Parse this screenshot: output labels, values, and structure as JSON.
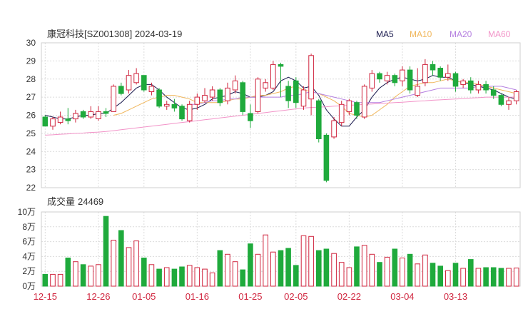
{
  "header": {
    "title": "康冠科技[SZ001308] 2024-03-19"
  },
  "volume_title": {
    "prefix": "成交量",
    "value": "24469"
  },
  "legend": [
    {
      "label": "MA5",
      "color": "#1a1a4e"
    },
    {
      "label": "MA10",
      "color": "#f0b65a"
    },
    {
      "label": "MA20",
      "color": "#b57fe0"
    },
    {
      "label": "MA60",
      "color": "#f293c8"
    }
  ],
  "colors": {
    "up": "#d0253e",
    "down": "#1faa3c"
  },
  "chart_data": [
    {
      "type": "candlestick",
      "title": "康冠科技[SZ001308] 2024-03-19",
      "ylim": [
        22,
        30
      ],
      "yticks": [
        "30",
        "29",
        "28",
        "27",
        "26",
        "25",
        "24",
        "23",
        "22"
      ],
      "xticks": [
        "12-15",
        "12-26",
        "01-05",
        "01-16",
        "01-25",
        "02-05",
        "02-22",
        "03-04",
        "03-13"
      ],
      "xtick_index": [
        0,
        7,
        13,
        20,
        27,
        33,
        40,
        47,
        54
      ],
      "candles": [
        [
          25.9,
          25.4,
          26.0,
          25.4
        ],
        [
          25.4,
          25.8,
          25.9,
          25.2
        ],
        [
          25.6,
          25.9,
          26.2,
          25.5
        ],
        [
          25.8,
          25.7,
          26.4,
          25.5
        ],
        [
          25.8,
          26.1,
          26.3,
          25.6
        ],
        [
          26.2,
          25.9,
          26.3,
          25.8
        ],
        [
          25.9,
          26.2,
          26.5,
          25.8
        ],
        [
          25.8,
          26.2,
          26.5,
          25.7
        ],
        [
          26.2,
          26.1,
          26.4,
          25.9
        ],
        [
          26.2,
          27.6,
          27.7,
          26.2
        ],
        [
          27.6,
          27.2,
          27.8,
          27.1
        ],
        [
          27.4,
          28.2,
          28.5,
          27.2
        ],
        [
          27.8,
          28.3,
          28.6,
          27.7
        ],
        [
          28.2,
          27.4,
          28.2,
          27.3
        ],
        [
          27.3,
          27.6,
          27.8,
          27.1
        ],
        [
          27.4,
          26.5,
          27.5,
          26.4
        ],
        [
          26.5,
          26.6,
          26.8,
          26.3
        ],
        [
          26.6,
          26.4,
          26.9,
          26.2
        ],
        [
          26.5,
          25.8,
          26.6,
          25.7
        ],
        [
          25.7,
          26.6,
          26.8,
          25.6
        ],
        [
          26.6,
          27.0,
          27.2,
          26.3
        ],
        [
          26.8,
          27.1,
          27.5,
          26.7
        ],
        [
          27.0,
          27.4,
          27.6,
          26.8
        ],
        [
          27.4,
          26.7,
          27.5,
          26.5
        ],
        [
          26.8,
          27.5,
          27.8,
          26.6
        ],
        [
          27.4,
          27.9,
          28.2,
          27.2
        ],
        [
          27.8,
          26.2,
          27.9,
          26.0
        ],
        [
          26.1,
          25.7,
          26.6,
          25.3
        ],
        [
          26.2,
          28.0,
          28.1,
          26.1
        ],
        [
          27.5,
          27.8,
          28.0,
          27.3
        ],
        [
          27.5,
          28.8,
          29.0,
          27.4
        ],
        [
          28.8,
          28.7,
          28.9,
          27.0
        ],
        [
          27.6,
          26.8,
          27.9,
          26.4
        ],
        [
          27.9,
          26.7,
          28.1,
          26.4
        ],
        [
          26.5,
          27.4,
          27.6,
          26.3
        ],
        [
          26.9,
          29.3,
          29.4,
          26.0
        ],
        [
          26.8,
          24.7,
          26.9,
          24.5
        ],
        [
          24.9,
          22.4,
          25.0,
          22.3
        ],
        [
          24.8,
          25.7,
          25.9,
          24.7
        ],
        [
          25.6,
          26.6,
          26.8,
          25.4
        ],
        [
          26.2,
          26.8,
          26.9,
          26.0
        ],
        [
          26.7,
          26.0,
          26.8,
          25.8
        ],
        [
          25.9,
          27.6,
          27.7,
          25.8
        ],
        [
          27.5,
          28.3,
          28.5,
          27.3
        ],
        [
          28.3,
          28.0,
          28.4,
          27.8
        ],
        [
          27.9,
          28.2,
          28.4,
          27.7
        ],
        [
          28.2,
          27.8,
          28.3,
          27.6
        ],
        [
          27.9,
          28.5,
          28.7,
          27.6
        ],
        [
          28.5,
          27.4,
          28.7,
          27.2
        ],
        [
          27.1,
          27.6,
          28.6,
          27.0
        ],
        [
          27.8,
          28.8,
          29.1,
          27.6
        ],
        [
          28.8,
          28.5,
          29.0,
          28.2
        ],
        [
          28.6,
          28.1,
          28.7,
          27.9
        ],
        [
          28.1,
          28.3,
          28.8,
          27.9
        ],
        [
          28.3,
          27.6,
          28.4,
          27.3
        ],
        [
          27.7,
          27.9,
          28.0,
          27.5
        ],
        [
          27.9,
          27.4,
          28.1,
          27.2
        ],
        [
          27.4,
          27.7,
          27.9,
          27.2
        ],
        [
          27.7,
          27.4,
          27.9,
          27.2
        ],
        [
          27.4,
          27.1,
          27.6,
          26.9
        ],
        [
          27.1,
          26.6,
          27.2,
          26.5
        ],
        [
          26.6,
          26.8,
          27.0,
          26.3
        ],
        [
          26.8,
          27.3,
          27.4,
          26.6
        ]
      ],
      "series": [
        {
          "name": "MA5",
          "values": [
            26.0,
            25.9,
            25.8,
            25.8,
            25.9,
            26.0,
            26.0,
            26.1,
            26.1,
            26.4,
            26.7,
            27.1,
            27.5,
            27.7,
            27.7,
            27.4,
            27.0,
            26.7,
            26.4,
            26.3,
            26.4,
            26.6,
            26.9,
            27.0,
            27.1,
            27.3,
            27.2,
            27.0,
            27.0,
            27.1,
            27.3,
            27.9,
            28.1,
            27.9,
            27.5,
            27.6,
            27.1,
            26.3,
            25.8,
            25.4,
            25.4,
            25.9,
            26.3,
            27.0,
            27.5,
            27.8,
            28.0,
            28.1,
            28.0,
            27.9,
            28.0,
            28.2,
            28.1,
            28.1,
            27.9,
            27.8,
            27.7,
            27.6,
            27.5,
            27.4,
            27.2,
            27.0,
            26.9
          ]
        },
        {
          "name": "MA10",
          "values": [
            null,
            null,
            null,
            null,
            null,
            null,
            null,
            null,
            null,
            26.0,
            26.1,
            26.3,
            26.5,
            26.7,
            26.9,
            27.0,
            27.1,
            27.1,
            27.0,
            26.9,
            26.7,
            26.7,
            26.7,
            26.7,
            26.8,
            26.9,
            26.9,
            27.0,
            27.1,
            27.1,
            27.2,
            27.3,
            27.5,
            27.6,
            27.4,
            27.3,
            27.2,
            27.0,
            26.8,
            26.5,
            26.1,
            26.0,
            25.9,
            26.0,
            26.3,
            26.6,
            27.0,
            27.3,
            27.6,
            27.7,
            27.8,
            27.8,
            27.9,
            28.0,
            27.9,
            27.8,
            27.8,
            27.7,
            27.6,
            27.5,
            27.4,
            27.3,
            27.2
          ]
        },
        {
          "name": "MA20",
          "values": [
            null,
            null,
            null,
            null,
            null,
            null,
            null,
            null,
            null,
            null,
            null,
            null,
            null,
            null,
            null,
            null,
            null,
            null,
            null,
            26.6,
            26.6,
            26.7,
            26.8,
            26.8,
            26.9,
            26.9,
            27.0,
            27.0,
            27.0,
            27.0,
            27.0,
            27.0,
            27.1,
            27.1,
            27.2,
            27.3,
            27.2,
            27.1,
            27.0,
            26.9,
            26.8,
            26.7,
            26.7,
            26.7,
            26.7,
            26.8,
            26.9,
            27.0,
            27.1,
            27.2,
            27.3,
            27.4,
            27.5,
            27.5,
            27.5,
            27.5,
            27.5,
            27.6,
            27.6,
            27.6,
            27.6,
            27.5,
            27.4
          ]
        },
        {
          "name": "MA60",
          "values": [
            24.9,
            24.92,
            24.95,
            24.97,
            25.0,
            25.02,
            25.05,
            25.07,
            25.1,
            25.15,
            25.2,
            25.25,
            25.3,
            25.35,
            25.4,
            25.45,
            25.5,
            25.55,
            25.6,
            25.65,
            25.7,
            25.75,
            25.8,
            25.85,
            25.9,
            25.95,
            26.0,
            26.05,
            26.1,
            26.15,
            26.2,
            26.25,
            26.3,
            26.35,
            26.4,
            26.43,
            26.45,
            26.47,
            26.5,
            26.52,
            26.55,
            26.57,
            26.6,
            26.62,
            26.65,
            26.67,
            26.7,
            26.72,
            26.75,
            26.78,
            26.8,
            26.83,
            26.85,
            26.88,
            26.9,
            26.92,
            26.95,
            26.97,
            27.0,
            27.0,
            27.0,
            27.0,
            27.0
          ]
        }
      ]
    },
    {
      "type": "bar",
      "title": "成交量 24469",
      "ylim": [
        0,
        100000
      ],
      "yticks": [
        "10万",
        "8万",
        "6万",
        "4万",
        "2万",
        "0万"
      ],
      "values": [
        16000,
        16000,
        16000,
        38000,
        33000,
        29000,
        27000,
        29000,
        94000,
        62000,
        75000,
        52000,
        61000,
        38000,
        29000,
        23000,
        25000,
        23000,
        26000,
        28000,
        25000,
        23000,
        18000,
        48000,
        43000,
        33000,
        22000,
        57000,
        43000,
        69000,
        46000,
        48000,
        51000,
        28000,
        68000,
        67000,
        48000,
        50000,
        44000,
        32000,
        25000,
        53000,
        55000,
        43000,
        32000,
        39000,
        50000,
        38000,
        43000,
        30000,
        42000,
        31000,
        27000,
        21000,
        31000,
        24000,
        36000,
        24000,
        25000,
        25000,
        24000,
        24000,
        24469
      ]
    }
  ]
}
